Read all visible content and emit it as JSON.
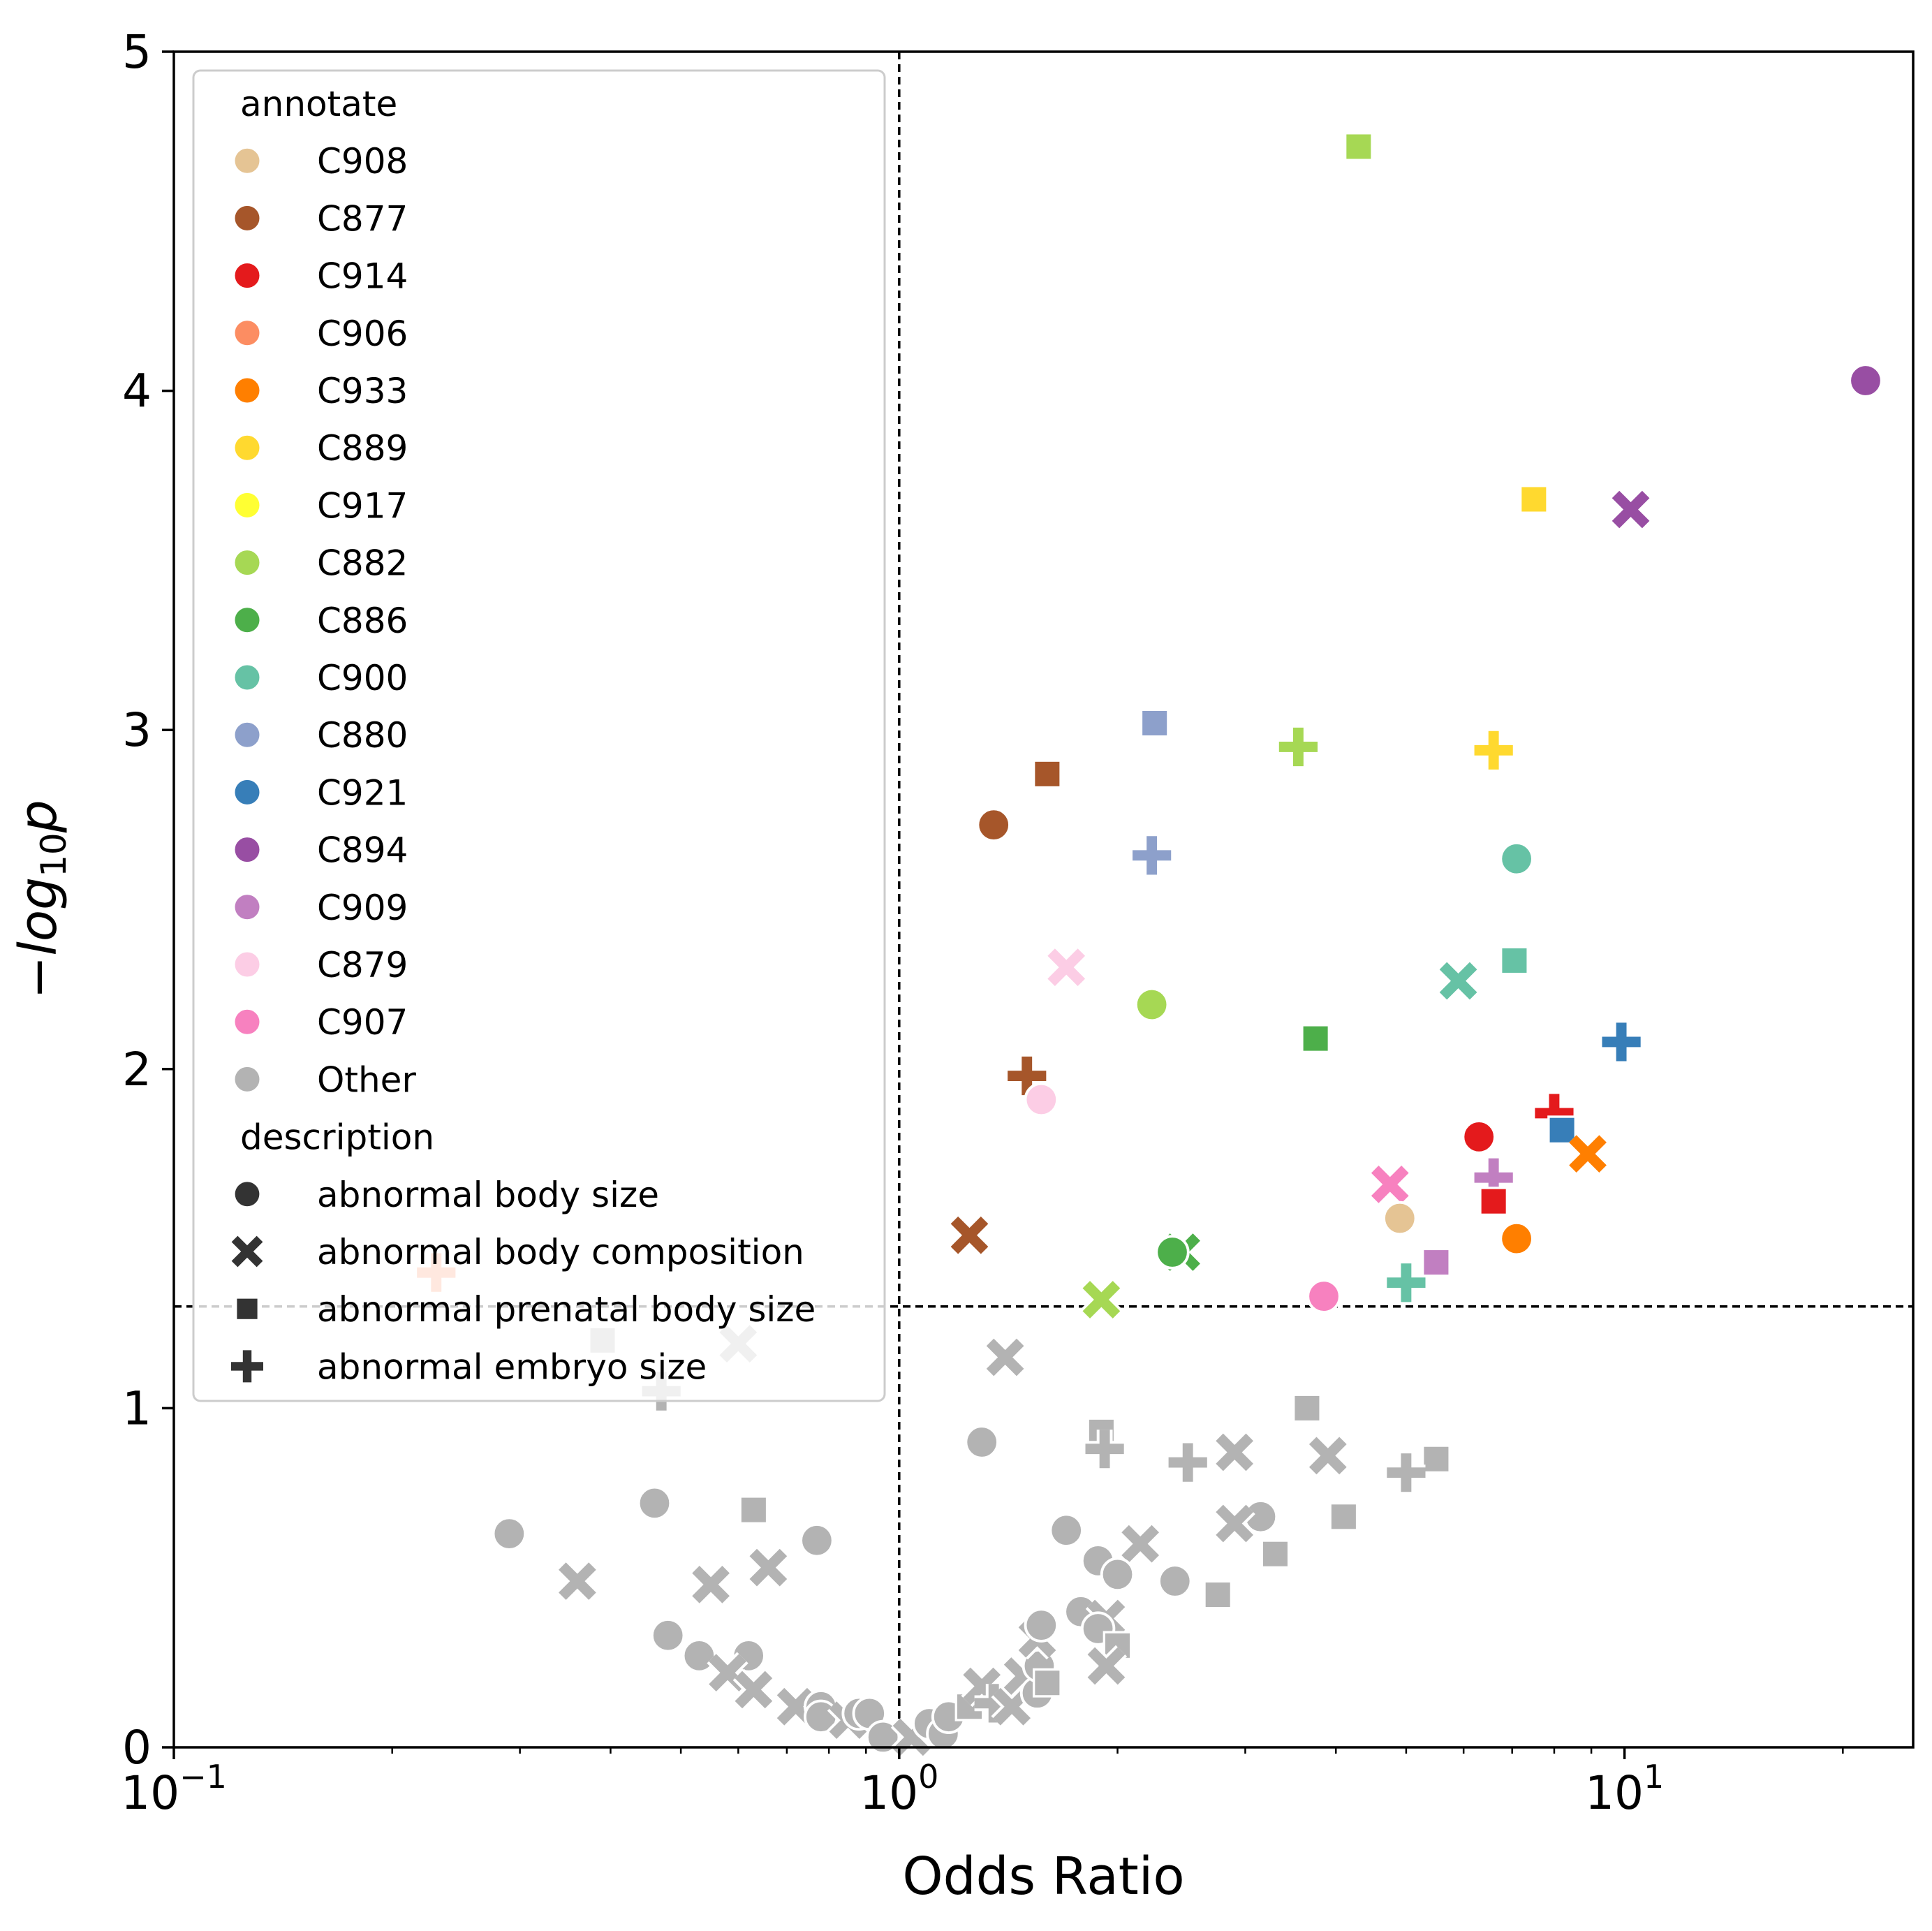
{
  "chart_data": {
    "type": "scatter",
    "title": "",
    "xlabel": "Odds Ratio",
    "ylabel_parts": {
      "prefix": "−",
      "base": "log",
      "sub": "10",
      "suffix": "p"
    },
    "xscale": "log",
    "xlim": [
      0.1,
      25
    ],
    "ylim": [
      0,
      5
    ],
    "x_ticks": [
      {
        "value": 0.1,
        "base": "10",
        "exp": "−1"
      },
      {
        "value": 1,
        "base": "10",
        "exp": "0"
      },
      {
        "value": 10,
        "base": "10",
        "exp": "1"
      }
    ],
    "y_ticks": [
      {
        "value": 0,
        "label": "0"
      },
      {
        "value": 1,
        "label": "1"
      },
      {
        "value": 2,
        "label": "2"
      },
      {
        "value": 3,
        "label": "3"
      },
      {
        "value": 4,
        "label": "4"
      },
      {
        "value": 5,
        "label": "5"
      }
    ],
    "reference_lines": {
      "x": 1,
      "y": 1.3
    },
    "grid": false,
    "legend_placement": "upper-left",
    "legend": {
      "annotate_title": "annotate",
      "annotate": [
        {
          "name": "C908",
          "color": "#e5c494"
        },
        {
          "name": "C877",
          "color": "#a6562a"
        },
        {
          "name": "C914",
          "color": "#e41a1c"
        },
        {
          "name": "C906",
          "color": "#fc8d62"
        },
        {
          "name": "C933",
          "color": "#ff7f00"
        },
        {
          "name": "C889",
          "color": "#ffd92f"
        },
        {
          "name": "C917",
          "color": "#ffff33"
        },
        {
          "name": "C882",
          "color": "#a6d854"
        },
        {
          "name": "C886",
          "color": "#4daf4a"
        },
        {
          "name": "C900",
          "color": "#66c2a5"
        },
        {
          "name": "C880",
          "color": "#8da0cb"
        },
        {
          "name": "C921",
          "color": "#377eb8"
        },
        {
          "name": "C894",
          "color": "#984ea3"
        },
        {
          "name": "C909",
          "color": "#c17fc1"
        },
        {
          "name": "C879",
          "color": "#fccde5"
        },
        {
          "name": "C907",
          "color": "#f781bf"
        },
        {
          "name": "Other",
          "color": "#b3b3b3"
        }
      ],
      "description_title": "description",
      "description": [
        {
          "name": "abnormal body size",
          "marker": "circle"
        },
        {
          "name": "abnormal body composition",
          "marker": "x"
        },
        {
          "name": "abnormal prenatal body size",
          "marker": "square"
        },
        {
          "name": "abnormal embryo size",
          "marker": "plus"
        }
      ]
    },
    "points": [
      {
        "x": 21.5,
        "y": 4.03,
        "annotate": "C894",
        "marker": "circle"
      },
      {
        "x": 10.2,
        "y": 3.65,
        "annotate": "C894",
        "marker": "x"
      },
      {
        "x": 4.3,
        "y": 4.72,
        "annotate": "C882",
        "marker": "square"
      },
      {
        "x": 7.5,
        "y": 3.68,
        "annotate": "C889",
        "marker": "square"
      },
      {
        "x": 2.25,
        "y": 3.02,
        "annotate": "C880",
        "marker": "square"
      },
      {
        "x": 3.55,
        "y": 2.95,
        "annotate": "C882",
        "marker": "plus"
      },
      {
        "x": 6.6,
        "y": 2.94,
        "annotate": "C889",
        "marker": "plus"
      },
      {
        "x": 1.6,
        "y": 2.87,
        "annotate": "C877",
        "marker": "square"
      },
      {
        "x": 1.35,
        "y": 2.72,
        "annotate": "C877",
        "marker": "circle"
      },
      {
        "x": 2.23,
        "y": 2.63,
        "annotate": "C880",
        "marker": "plus"
      },
      {
        "x": 7.1,
        "y": 2.62,
        "annotate": "C900",
        "marker": "circle"
      },
      {
        "x": 1.7,
        "y": 2.3,
        "annotate": "C879",
        "marker": "x"
      },
      {
        "x": 7.05,
        "y": 2.32,
        "annotate": "C900",
        "marker": "square"
      },
      {
        "x": 5.9,
        "y": 2.26,
        "annotate": "C900",
        "marker": "x"
      },
      {
        "x": 2.23,
        "y": 2.19,
        "annotate": "C882",
        "marker": "circle"
      },
      {
        "x": 3.75,
        "y": 2.09,
        "annotate": "C886",
        "marker": "square"
      },
      {
        "x": 9.9,
        "y": 2.08,
        "annotate": "C921",
        "marker": "plus"
      },
      {
        "x": 1.5,
        "y": 1.98,
        "annotate": "C877",
        "marker": "plus"
      },
      {
        "x": 1.57,
        "y": 1.91,
        "annotate": "C879",
        "marker": "circle"
      },
      {
        "x": 8.0,
        "y": 1.87,
        "annotate": "C914",
        "marker": "plus"
      },
      {
        "x": 8.2,
        "y": 1.82,
        "annotate": "C921",
        "marker": "square"
      },
      {
        "x": 6.3,
        "y": 1.8,
        "annotate": "C914",
        "marker": "circle"
      },
      {
        "x": 8.9,
        "y": 1.75,
        "annotate": "C933",
        "marker": "x"
      },
      {
        "x": 6.6,
        "y": 1.68,
        "annotate": "C909",
        "marker": "plus"
      },
      {
        "x": 4.75,
        "y": 1.66,
        "annotate": "C907",
        "marker": "x"
      },
      {
        "x": 6.6,
        "y": 1.61,
        "annotate": "C914",
        "marker": "square"
      },
      {
        "x": 4.9,
        "y": 1.56,
        "annotate": "C908",
        "marker": "circle"
      },
      {
        "x": 1.25,
        "y": 1.51,
        "annotate": "C877",
        "marker": "x"
      },
      {
        "x": 7.1,
        "y": 1.5,
        "annotate": "C933",
        "marker": "circle"
      },
      {
        "x": 2.45,
        "y": 1.46,
        "annotate": "C886",
        "marker": "x"
      },
      {
        "x": 2.38,
        "y": 1.46,
        "annotate": "C886",
        "marker": "circle"
      },
      {
        "x": 5.5,
        "y": 1.43,
        "annotate": "C909",
        "marker": "square"
      },
      {
        "x": 5.0,
        "y": 1.37,
        "annotate": "C900",
        "marker": "plus"
      },
      {
        "x": 3.85,
        "y": 1.33,
        "annotate": "C907",
        "marker": "circle"
      },
      {
        "x": 1.9,
        "y": 1.32,
        "annotate": "C882",
        "marker": "x"
      },
      {
        "x": 0.23,
        "y": 1.4,
        "annotate": "C906",
        "marker": "plus"
      },
      {
        "x": 0.47,
        "y": 1.05,
        "annotate": "Other",
        "marker": "plus"
      },
      {
        "x": 0.39,
        "y": 1.2,
        "annotate": "Other",
        "marker": "square"
      },
      {
        "x": 0.6,
        "y": 1.19,
        "annotate": "Other",
        "marker": "x"
      },
      {
        "x": 1.4,
        "y": 1.15,
        "annotate": "Other",
        "marker": "x"
      },
      {
        "x": 1.3,
        "y": 0.9,
        "annotate": "Other",
        "marker": "circle"
      },
      {
        "x": 3.65,
        "y": 1.0,
        "annotate": "Other",
        "marker": "square"
      },
      {
        "x": 1.9,
        "y": 0.93,
        "annotate": "Other",
        "marker": "square"
      },
      {
        "x": 1.92,
        "y": 0.88,
        "annotate": "Other",
        "marker": "plus"
      },
      {
        "x": 2.9,
        "y": 0.87,
        "annotate": "Other",
        "marker": "x"
      },
      {
        "x": 3.9,
        "y": 0.86,
        "annotate": "Other",
        "marker": "x"
      },
      {
        "x": 2.5,
        "y": 0.84,
        "annotate": "Other",
        "marker": "plus"
      },
      {
        "x": 5.5,
        "y": 0.85,
        "annotate": "Other",
        "marker": "square"
      },
      {
        "x": 5.0,
        "y": 0.81,
        "annotate": "Other",
        "marker": "plus"
      },
      {
        "x": 0.29,
        "y": 0.63,
        "annotate": "Other",
        "marker": "circle"
      },
      {
        "x": 0.46,
        "y": 0.72,
        "annotate": "Other",
        "marker": "circle"
      },
      {
        "x": 0.63,
        "y": 0.7,
        "annotate": "Other",
        "marker": "square"
      },
      {
        "x": 0.77,
        "y": 0.61,
        "annotate": "Other",
        "marker": "circle"
      },
      {
        "x": 1.7,
        "y": 0.64,
        "annotate": "Other",
        "marker": "circle"
      },
      {
        "x": 3.15,
        "y": 0.68,
        "annotate": "Other",
        "marker": "circle"
      },
      {
        "x": 4.1,
        "y": 0.68,
        "annotate": "Other",
        "marker": "square"
      },
      {
        "x": 2.9,
        "y": 0.66,
        "annotate": "Other",
        "marker": "x"
      },
      {
        "x": 3.3,
        "y": 0.57,
        "annotate": "Other",
        "marker": "square"
      },
      {
        "x": 2.15,
        "y": 0.6,
        "annotate": "Other",
        "marker": "x"
      },
      {
        "x": 1.88,
        "y": 0.55,
        "annotate": "Other",
        "marker": "circle"
      },
      {
        "x": 2.0,
        "y": 0.51,
        "annotate": "Other",
        "marker": "circle"
      },
      {
        "x": 2.4,
        "y": 0.49,
        "annotate": "Other",
        "marker": "circle"
      },
      {
        "x": 2.75,
        "y": 0.45,
        "annotate": "Other",
        "marker": "square"
      },
      {
        "x": 0.36,
        "y": 0.49,
        "annotate": "Other",
        "marker": "x"
      },
      {
        "x": 0.55,
        "y": 0.48,
        "annotate": "Other",
        "marker": "x"
      },
      {
        "x": 0.66,
        "y": 0.53,
        "annotate": "Other",
        "marker": "x"
      },
      {
        "x": 0.48,
        "y": 0.33,
        "annotate": "Other",
        "marker": "circle"
      },
      {
        "x": 0.53,
        "y": 0.27,
        "annotate": "Other",
        "marker": "circle"
      },
      {
        "x": 0.62,
        "y": 0.27,
        "annotate": "Other",
        "marker": "circle"
      },
      {
        "x": 0.58,
        "y": 0.22,
        "annotate": "Other",
        "marker": "x"
      },
      {
        "x": 0.63,
        "y": 0.17,
        "annotate": "Other",
        "marker": "x"
      },
      {
        "x": 0.72,
        "y": 0.12,
        "annotate": "Other",
        "marker": "x"
      },
      {
        "x": 0.78,
        "y": 0.12,
        "annotate": "Other",
        "marker": "circle"
      },
      {
        "x": 0.78,
        "y": 0.09,
        "annotate": "Other",
        "marker": "circle"
      },
      {
        "x": 0.85,
        "y": 0.08,
        "annotate": "Other",
        "marker": "x"
      },
      {
        "x": 0.88,
        "y": 0.1,
        "annotate": "Other",
        "marker": "circle"
      },
      {
        "x": 0.91,
        "y": 0.1,
        "annotate": "Other",
        "marker": "circle"
      },
      {
        "x": 0.95,
        "y": 0.03,
        "annotate": "Other",
        "marker": "circle"
      },
      {
        "x": 1.04,
        "y": 0.03,
        "annotate": "Other",
        "marker": "x"
      },
      {
        "x": 1.1,
        "y": 0.07,
        "annotate": "Other",
        "marker": "circle"
      },
      {
        "x": 1.15,
        "y": 0.04,
        "annotate": "Other",
        "marker": "circle"
      },
      {
        "x": 1.17,
        "y": 0.09,
        "annotate": "Other",
        "marker": "circle"
      },
      {
        "x": 1.25,
        "y": 0.12,
        "annotate": "Other",
        "marker": "square"
      },
      {
        "x": 1.3,
        "y": 0.18,
        "annotate": "Other",
        "marker": "x"
      },
      {
        "x": 1.35,
        "y": 0.13,
        "annotate": "Other",
        "marker": "plus"
      },
      {
        "x": 1.43,
        "y": 0.12,
        "annotate": "Other",
        "marker": "x"
      },
      {
        "x": 1.48,
        "y": 0.21,
        "annotate": "Other",
        "marker": "x"
      },
      {
        "x": 1.55,
        "y": 0.16,
        "annotate": "Other",
        "marker": "circle"
      },
      {
        "x": 1.56,
        "y": 0.24,
        "annotate": "Other",
        "marker": "circle"
      },
      {
        "x": 1.6,
        "y": 0.19,
        "annotate": "Other",
        "marker": "square"
      },
      {
        "x": 1.55,
        "y": 0.32,
        "annotate": "Other",
        "marker": "x"
      },
      {
        "x": 1.57,
        "y": 0.36,
        "annotate": "Other",
        "marker": "circle"
      },
      {
        "x": 1.78,
        "y": 0.4,
        "annotate": "Other",
        "marker": "circle"
      },
      {
        "x": 1.93,
        "y": 0.38,
        "annotate": "Other",
        "marker": "x"
      },
      {
        "x": 1.88,
        "y": 0.35,
        "annotate": "Other",
        "marker": "circle"
      },
      {
        "x": 2.0,
        "y": 0.3,
        "annotate": "Other",
        "marker": "square"
      },
      {
        "x": 1.93,
        "y": 0.24,
        "annotate": "Other",
        "marker": "x"
      }
    ]
  }
}
